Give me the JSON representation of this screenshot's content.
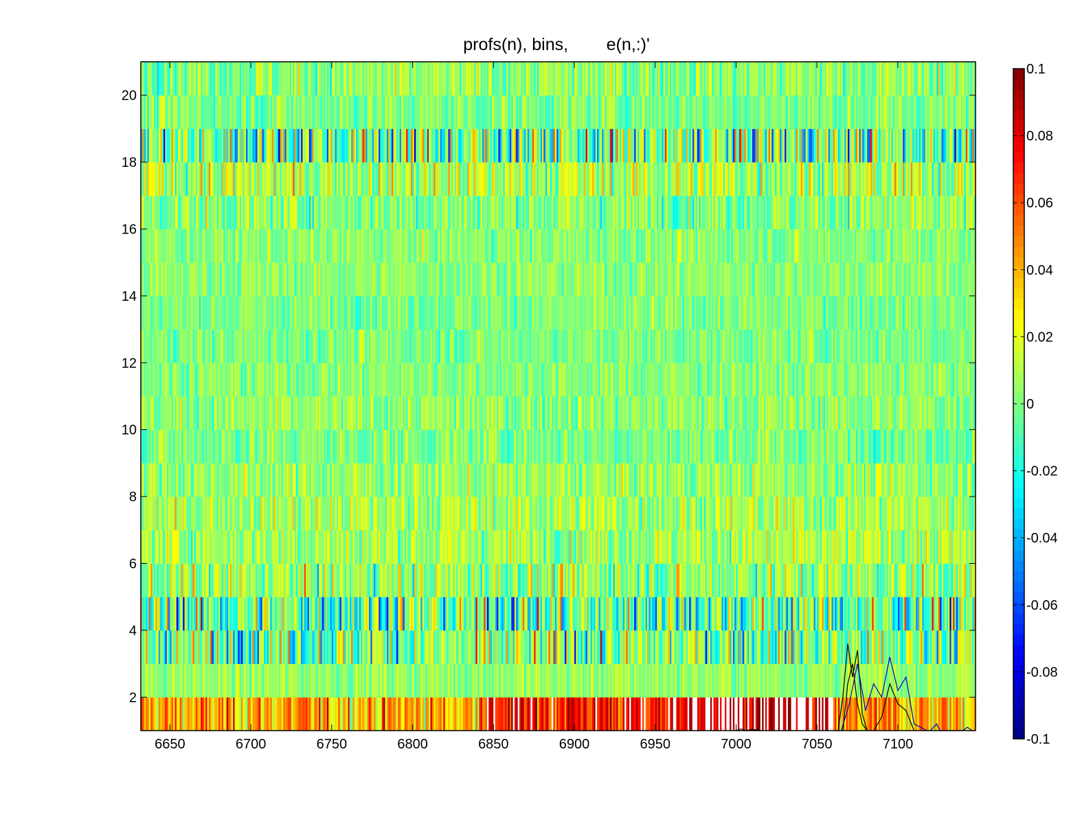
{
  "chart_data": {
    "type": "heatmap",
    "title": "profs(n), bins,        e(n,:)'",
    "xlabel": "",
    "ylabel": "",
    "xlim": [
      6632,
      7148
    ],
    "ylim": [
      1,
      21
    ],
    "x_ticks": [
      6650,
      6700,
      6750,
      6800,
      6850,
      6900,
      6950,
      7000,
      7050,
      7100
    ],
    "y_ticks": [
      2,
      4,
      6,
      8,
      10,
      12,
      14,
      16,
      18,
      20
    ],
    "x_tick_labels": [
      "6650",
      "6700",
      "6750",
      "6800",
      "6850",
      "6900",
      "6950",
      "7000",
      "7050",
      "7100"
    ],
    "y_tick_labels": [
      "2",
      "4",
      "6",
      "8",
      "10",
      "12",
      "14",
      "16",
      "18",
      "20"
    ],
    "rows": 20,
    "colorbar": {
      "colormap": "jet",
      "clim": [
        -0.1,
        0.1
      ],
      "ticks": [
        0.1,
        0.08,
        0.06,
        0.04,
        0.02,
        0,
        -0.02,
        -0.04,
        -0.06,
        -0.08,
        -0.1
      ],
      "tick_labels": [
        "0.1",
        "0.08",
        "0.06",
        "0.04",
        "0.02",
        "0",
        "-0.02",
        "-0.04",
        "-0.06",
        "-0.08",
        "-0.1"
      ],
      "out_of_range_color": "#ffffff"
    },
    "row_noise_amplitude": [
      0.045,
      0.02,
      0.06,
      0.07,
      0.04,
      0.03,
      0.03,
      0.025,
      0.025,
      0.025,
      0.02,
      0.02,
      0.02,
      0.02,
      0.02,
      0.03,
      0.04,
      0.07,
      0.025,
      0.03
    ],
    "row_offset": [
      0.04,
      0.005,
      0.0,
      -0.005,
      0.005,
      0.008,
      0.008,
      0.005,
      0.0,
      0.003,
      0.002,
      0.0,
      0.0,
      0.003,
      0.002,
      0.002,
      0.01,
      -0.003,
      0.0,
      0.003
    ],
    "overlay_lines": [
      {
        "name": "",
        "color": "#000000",
        "points": [
          [
            7063,
            1.0
          ],
          [
            7066,
            2.0
          ],
          [
            7069,
            3.6
          ],
          [
            7072,
            2.6
          ],
          [
            7075,
            3.4
          ],
          [
            7078,
            1.5
          ],
          [
            7081,
            1.0
          ]
        ]
      },
      {
        "name": "",
        "color": "#000000",
        "points": [
          [
            7066,
            1.0
          ],
          [
            7069,
            2.4
          ],
          [
            7072,
            3.0
          ],
          [
            7075,
            1.8
          ],
          [
            7078,
            1.2
          ],
          [
            7081,
            1.0
          ]
        ]
      },
      {
        "name": "",
        "color": "#0000cc",
        "points": [
          [
            7065,
            1.0
          ],
          [
            7070,
            1.8
          ],
          [
            7075,
            3.0
          ],
          [
            7080,
            1.6
          ],
          [
            7085,
            2.4
          ],
          [
            7090,
            2.0
          ],
          [
            7095,
            3.2
          ],
          [
            7100,
            2.2
          ],
          [
            7105,
            2.6
          ],
          [
            7110,
            1.2
          ],
          [
            7118,
            1.0
          ]
        ]
      },
      {
        "name": "",
        "color": "#000000",
        "points": [
          [
            7085,
            1.0
          ],
          [
            7090,
            1.4
          ],
          [
            7095,
            2.4
          ],
          [
            7100,
            1.8
          ],
          [
            7105,
            1.6
          ],
          [
            7110,
            1.0
          ]
        ]
      },
      {
        "name": "",
        "color": "#0000cc",
        "points": [
          [
            7120,
            1.0
          ],
          [
            7124,
            1.2
          ],
          [
            7126,
            1.0
          ],
          [
            7140,
            1.0
          ],
          [
            7143,
            1.1
          ],
          [
            7146,
            1.0
          ]
        ]
      },
      {
        "name": "",
        "color": "#000000",
        "points": [
          [
            7000,
            1.0
          ],
          [
            7003,
            1.05
          ],
          [
            7006,
            1.0
          ],
          [
            7010,
            1.04
          ],
          [
            7015,
            1.0
          ]
        ]
      }
    ]
  }
}
